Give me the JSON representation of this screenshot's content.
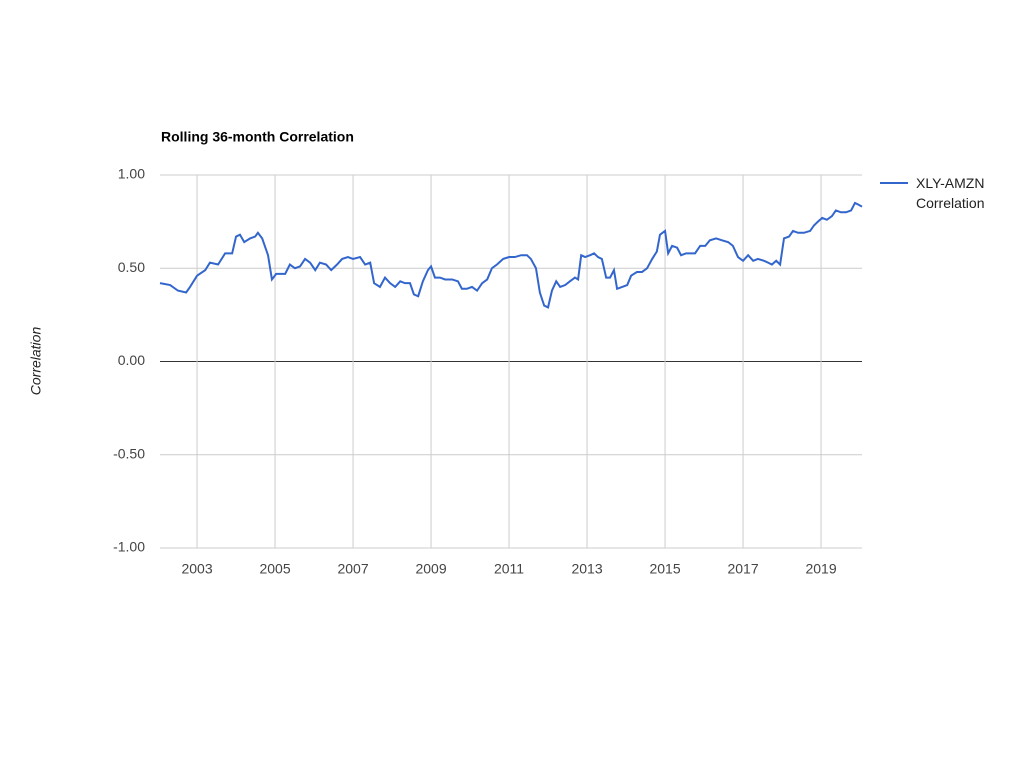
{
  "chart_data": {
    "type": "line",
    "title": "Rolling 36-month Correlation",
    "y_label": "Correlation",
    "xlim": [
      2002.05,
      2020.05
    ],
    "xticks": [
      2003,
      2005,
      2007,
      2009,
      2011,
      2013,
      2015,
      2017,
      2019
    ],
    "ylim": [
      -1,
      1
    ],
    "yticks": [
      {
        "value": -1,
        "label": "-1.00"
      },
      {
        "value": -0.5,
        "label": "-0.50"
      },
      {
        "value": 0,
        "label": "0.00"
      },
      {
        "value": 0.5,
        "label": "0.50"
      },
      {
        "value": 1,
        "label": "1.00"
      }
    ],
    "grid": true,
    "legend": "right",
    "x": [
      2002.05,
      2002.31,
      2002.51,
      2002.72,
      2002.82,
      2003.0,
      2003.21,
      2003.33,
      2003.54,
      2003.72,
      2003.9,
      2004.0,
      2004.1,
      2004.21,
      2004.36,
      2004.49,
      2004.56,
      2004.67,
      2004.82,
      2004.92,
      2005.03,
      2005.26,
      2005.38,
      2005.51,
      2005.64,
      2005.77,
      2005.9,
      2006.03,
      2006.15,
      2006.31,
      2006.44,
      2006.59,
      2006.72,
      2006.87,
      2007.0,
      2007.18,
      2007.31,
      2007.44,
      2007.54,
      2007.69,
      2007.82,
      2007.95,
      2008.08,
      2008.21,
      2008.33,
      2008.46,
      2008.56,
      2008.67,
      2008.79,
      2008.92,
      2009.0,
      2009.1,
      2009.23,
      2009.36,
      2009.54,
      2009.69,
      2009.79,
      2009.92,
      2010.05,
      2010.18,
      2010.31,
      2010.44,
      2010.56,
      2010.69,
      2010.85,
      2011.0,
      2011.15,
      2011.31,
      2011.46,
      2011.56,
      2011.69,
      2011.79,
      2011.9,
      2012.0,
      2012.1,
      2012.21,
      2012.31,
      2012.44,
      2012.56,
      2012.69,
      2012.77,
      2012.85,
      2012.95,
      2013.08,
      2013.18,
      2013.28,
      2013.38,
      2013.49,
      2013.59,
      2013.69,
      2013.77,
      2013.9,
      2014.03,
      2014.13,
      2014.28,
      2014.41,
      2014.54,
      2014.67,
      2014.79,
      2014.87,
      2015.0,
      2015.08,
      2015.18,
      2015.31,
      2015.41,
      2015.54,
      2015.64,
      2015.77,
      2015.9,
      2016.03,
      2016.15,
      2016.31,
      2016.46,
      2016.62,
      2016.74,
      2016.87,
      2017.0,
      2017.13,
      2017.26,
      2017.38,
      2017.54,
      2017.64,
      2017.74,
      2017.85,
      2017.95,
      2018.05,
      2018.18,
      2018.28,
      2018.41,
      2018.56,
      2018.72,
      2018.82,
      2018.92,
      2019.03,
      2019.15,
      2019.28,
      2019.38,
      2019.51,
      2019.64,
      2019.77,
      2019.87,
      2019.97,
      2020.05
    ],
    "series": [
      {
        "name": "XLY-AMZN Correlation",
        "color": "#3366cc",
        "values": [
          0.42,
          0.41,
          0.38,
          0.37,
          0.4,
          0.46,
          0.49,
          0.53,
          0.52,
          0.58,
          0.58,
          0.67,
          0.68,
          0.64,
          0.66,
          0.67,
          0.69,
          0.66,
          0.57,
          0.44,
          0.47,
          0.47,
          0.52,
          0.5,
          0.51,
          0.55,
          0.53,
          0.49,
          0.53,
          0.52,
          0.49,
          0.52,
          0.55,
          0.56,
          0.55,
          0.56,
          0.52,
          0.53,
          0.42,
          0.4,
          0.45,
          0.42,
          0.4,
          0.43,
          0.42,
          0.42,
          0.36,
          0.35,
          0.43,
          0.49,
          0.51,
          0.45,
          0.45,
          0.44,
          0.44,
          0.43,
          0.39,
          0.39,
          0.4,
          0.38,
          0.42,
          0.44,
          0.5,
          0.52,
          0.55,
          0.56,
          0.56,
          0.57,
          0.57,
          0.55,
          0.5,
          0.37,
          0.3,
          0.29,
          0.38,
          0.43,
          0.4,
          0.41,
          0.43,
          0.45,
          0.44,
          0.57,
          0.56,
          0.57,
          0.58,
          0.56,
          0.55,
          0.45,
          0.45,
          0.49,
          0.39,
          0.4,
          0.41,
          0.46,
          0.48,
          0.48,
          0.5,
          0.55,
          0.59,
          0.68,
          0.7,
          0.58,
          0.62,
          0.61,
          0.57,
          0.58,
          0.58,
          0.58,
          0.62,
          0.62,
          0.65,
          0.66,
          0.65,
          0.64,
          0.62,
          0.56,
          0.54,
          0.57,
          0.54,
          0.55,
          0.54,
          0.53,
          0.52,
          0.54,
          0.52,
          0.66,
          0.67,
          0.7,
          0.69,
          0.69,
          0.7,
          0.73,
          0.75,
          0.77,
          0.76,
          0.78,
          0.81,
          0.8,
          0.8,
          0.81,
          0.85,
          0.84,
          0.83
        ]
      }
    ]
  }
}
